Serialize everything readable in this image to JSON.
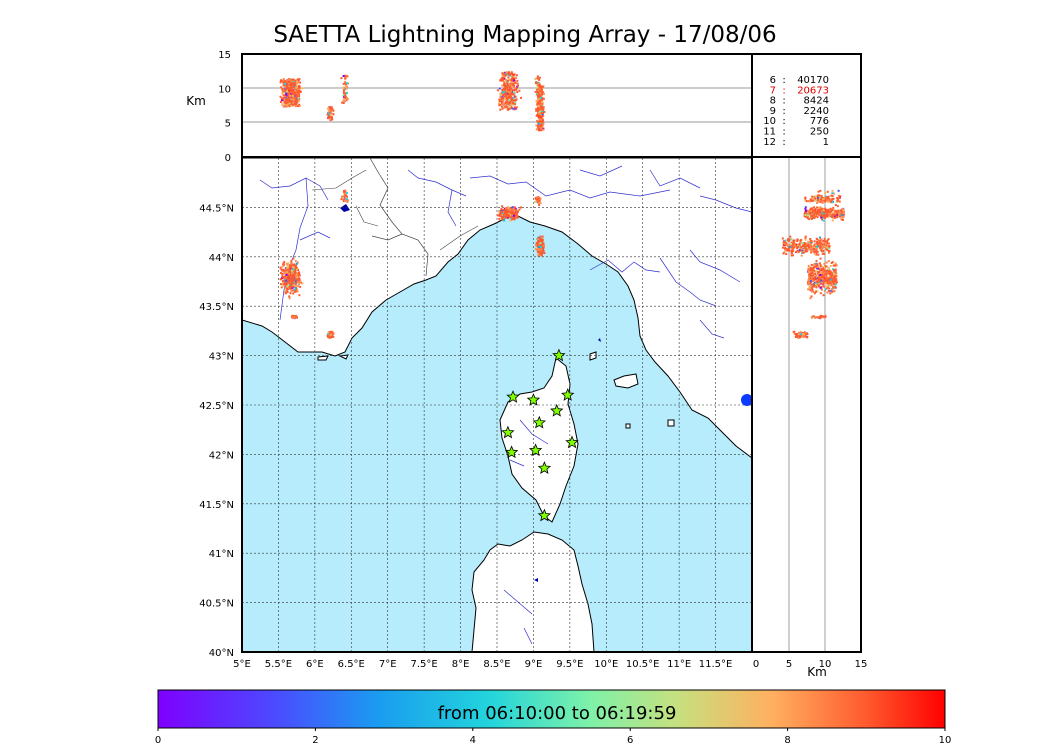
{
  "chart_data": {
    "type": "scatter",
    "title": "SAETTA Lightning Mapping Array - 17/08/06",
    "map_panel": {
      "x_ticks": [
        "5°E",
        "5.5°E",
        "6°E",
        "6.5°E",
        "7°E",
        "7.5°E",
        "8°E",
        "8.5°E",
        "9°E",
        "9.5°E",
        "10°E",
        "10.5°E",
        "11°E",
        "11.5°E"
      ],
      "y_ticks": [
        "40°N",
        "40.5°N",
        "41°N",
        "41.5°N",
        "42°N",
        "42.5°N",
        "43°N",
        "43.5°N",
        "44°N",
        "44.5°N"
      ],
      "lon_range": [
        5,
        12
      ],
      "lat_range": [
        40,
        45
      ],
      "grid": "dotted",
      "sea_color": "#b6ecfb",
      "land_color": "#ffffff"
    },
    "altitude_panel": {
      "ylabel": "Km",
      "y_ticks": [
        "0",
        "5",
        "10",
        "15"
      ],
      "ylim": [
        0,
        15
      ]
    },
    "side_panel": {
      "xlabel": "Km",
      "x_ticks": [
        "0",
        "5",
        "10",
        "15"
      ],
      "xlim": [
        0,
        15
      ]
    },
    "station_counts": [
      {
        "stations": "6",
        "count": "40170",
        "highlight": false
      },
      {
        "stations": "7",
        "count": "20673",
        "highlight": true
      },
      {
        "stations": "8",
        "count": "8424",
        "highlight": false
      },
      {
        "stations": "9",
        "count": "2240",
        "highlight": false
      },
      {
        "stations": "10",
        "count": "776",
        "highlight": false
      },
      {
        "stations": "11",
        "count": "250",
        "highlight": false
      },
      {
        "stations": "12",
        "count": "1",
        "highlight": false
      }
    ],
    "stations_lonlat": [
      [
        9.35,
        43.0
      ],
      [
        8.72,
        42.58
      ],
      [
        9.0,
        42.55
      ],
      [
        9.47,
        42.6
      ],
      [
        9.32,
        42.44
      ],
      [
        9.08,
        42.32
      ],
      [
        8.65,
        42.22
      ],
      [
        9.53,
        42.12
      ],
      [
        8.7,
        42.02
      ],
      [
        9.03,
        42.04
      ],
      [
        9.15,
        41.86
      ],
      [
        9.15,
        41.38
      ]
    ],
    "lightning_clusters": [
      {
        "name": "provence",
        "lon": 5.65,
        "lat": 43.8,
        "lon_spread": 0.18,
        "lat_spread": 0.22,
        "alt_range": [
          7.5,
          11.5
        ],
        "n": 420
      },
      {
        "name": "provence-south",
        "lon": 5.7,
        "lat": 43.4,
        "lon_spread": 0.05,
        "lat_spread": 0.02,
        "alt_range": [
          8,
          10
        ],
        "n": 30
      },
      {
        "name": "toulon",
        "lon": 6.2,
        "lat": 43.22,
        "lon_spread": 0.06,
        "lat_spread": 0.04,
        "alt_range": [
          5.5,
          7.5
        ],
        "n": 50
      },
      {
        "name": "alps",
        "lon": 6.4,
        "lat": 44.62,
        "lon_spread": 0.06,
        "lat_spread": 0.08,
        "alt_range": [
          8,
          12
        ],
        "n": 50
      },
      {
        "name": "genoa-west",
        "lon": 8.65,
        "lat": 44.45,
        "lon_spread": 0.18,
        "lat_spread": 0.08,
        "alt_range": [
          7,
          12.5
        ],
        "n": 320
      },
      {
        "name": "genoa-east",
        "lon": 9.05,
        "lat": 44.58,
        "lon_spread": 0.05,
        "lat_spread": 0.05,
        "alt_range": [
          7,
          12
        ],
        "n": 60
      },
      {
        "name": "la-spezia",
        "lon": 9.08,
        "lat": 44.12,
        "lon_spread": 0.07,
        "lat_spread": 0.12,
        "alt_range": [
          4,
          10.5
        ],
        "n": 300
      }
    ],
    "colorbar": {
      "label": "from 06:10:00 to 06:19:59",
      "ticks": [
        "0",
        "2",
        "4",
        "6",
        "8",
        "10"
      ],
      "range": [
        0,
        10
      ]
    }
  }
}
